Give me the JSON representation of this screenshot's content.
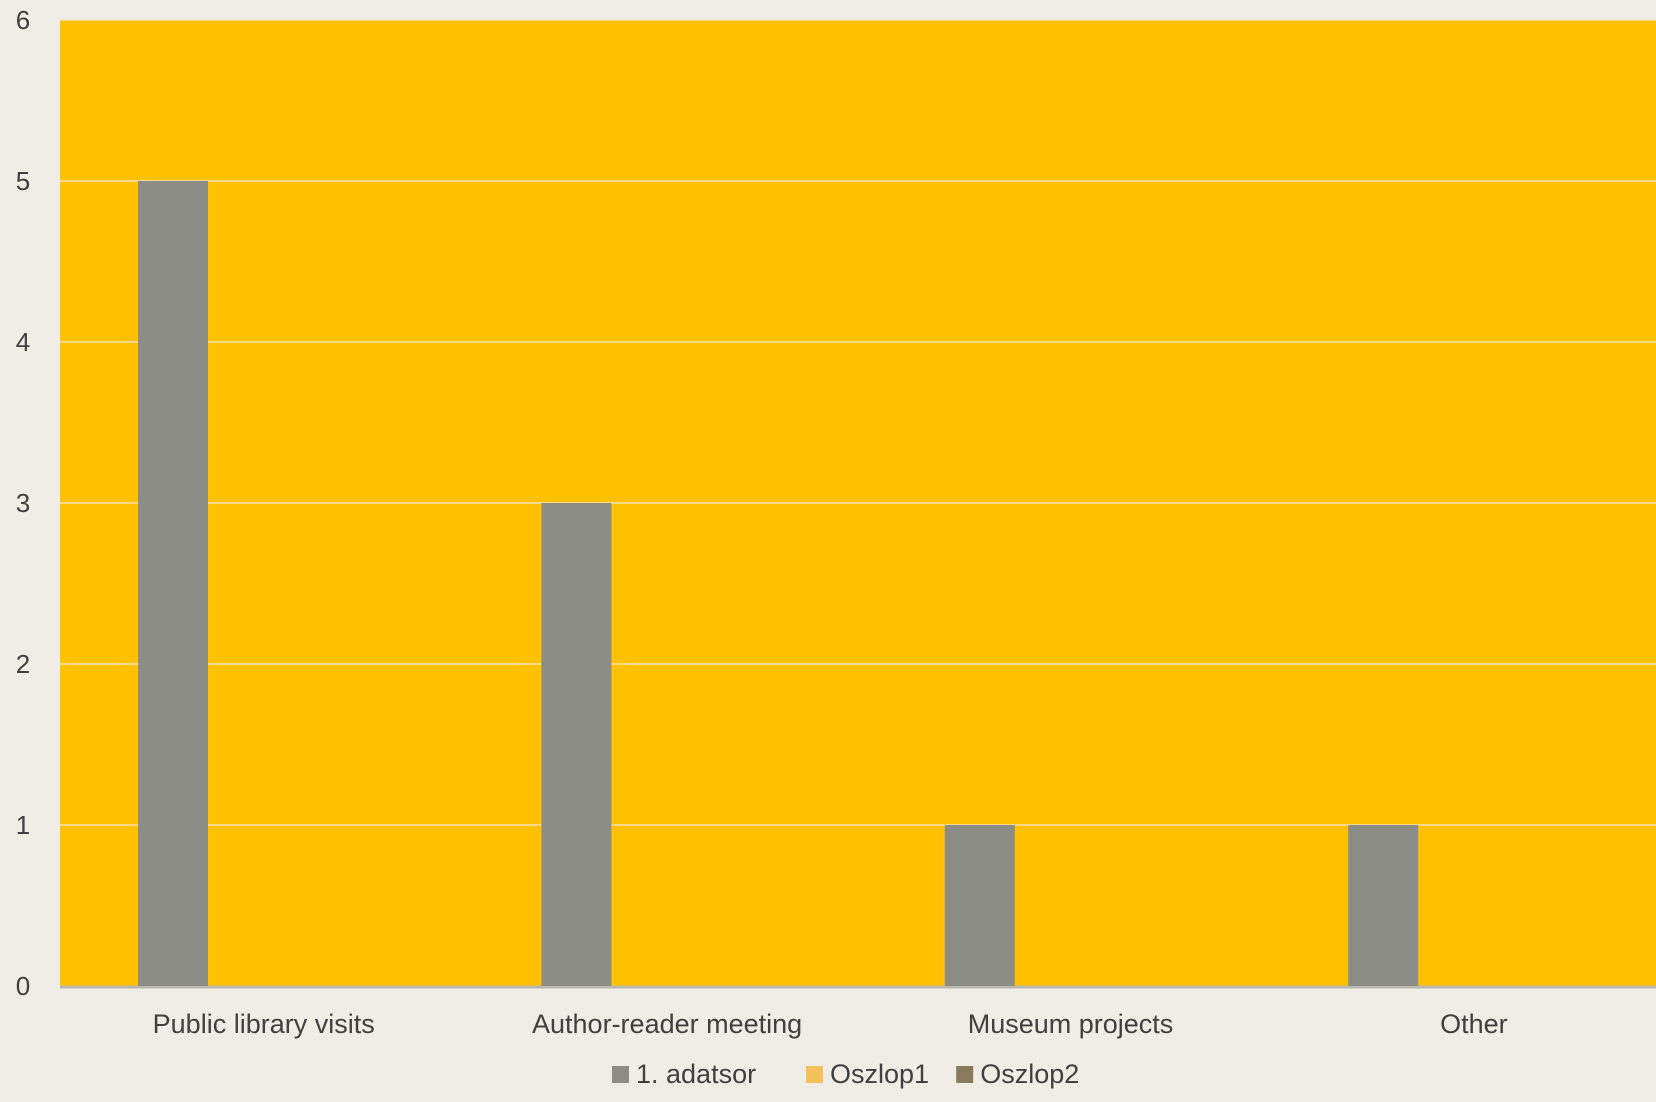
{
  "chart_data": {
    "type": "bar",
    "categories": [
      "Public library visits",
      "Author-reader meeting",
      "Museum projects",
      "Other"
    ],
    "series": [
      {
        "name": "1. adatsor",
        "values": [
          5,
          3,
          1,
          1
        ],
        "color": "#8c8d86"
      },
      {
        "name": "Oszlop1",
        "values": [
          null,
          null,
          null,
          null
        ],
        "color": "#f3c05a"
      },
      {
        "name": "Oszlop2",
        "values": [
          null,
          null,
          null,
          null
        ],
        "color": "#8a7a5c"
      }
    ],
    "yticks": [
      0,
      1,
      2,
      3,
      4,
      5,
      6
    ],
    "ylim": [
      0,
      6
    ],
    "grid": true,
    "legend": "bottom",
    "plot_background": "#ffc000",
    "page_background": "#efede6"
  }
}
